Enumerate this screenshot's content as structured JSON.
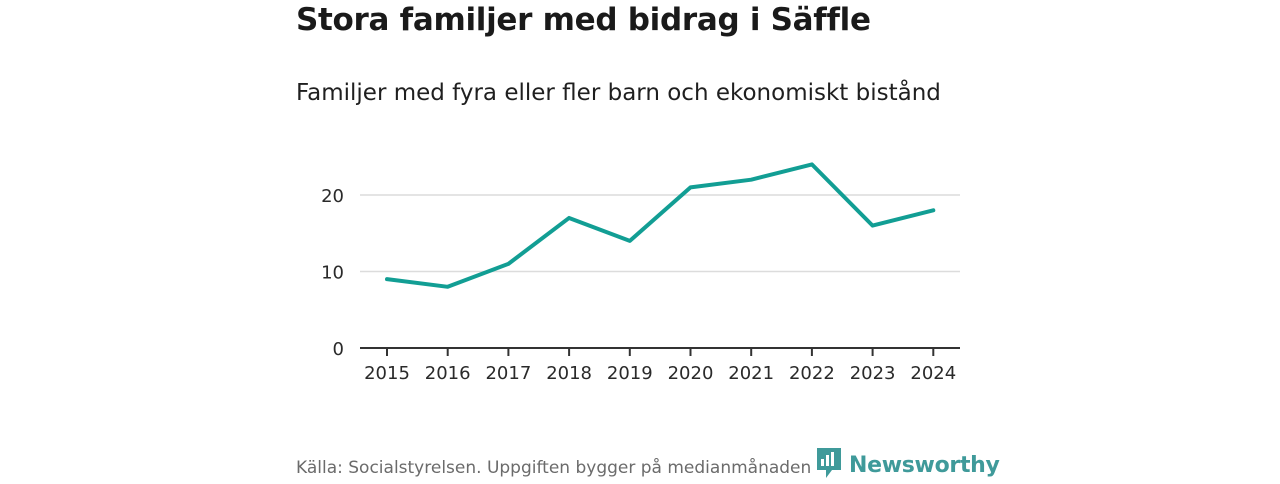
{
  "header": {
    "title": "Stora familjer med bidrag i Säffle",
    "subtitle": "Familjer med fyra eller fler barn och ekonomiskt bistånd"
  },
  "footer": {
    "source": "Källa: Socialstyrelsen. Uppgiften bygger på medianmånaden för varje år",
    "brand": "Newsworthy"
  },
  "colors": {
    "line": "#129e94",
    "grid": "#dcdcdc",
    "axis": "#333333",
    "brand": "#3f9a9a"
  },
  "chart_data": {
    "type": "line",
    "title": "Stora familjer med bidrag i Säffle",
    "subtitle": "Familjer med fyra eller fler barn och ekonomiskt bistånd",
    "xlabel": "",
    "ylabel": "",
    "categories": [
      "2015",
      "2016",
      "2017",
      "2018",
      "2019",
      "2020",
      "2021",
      "2022",
      "2023",
      "2024"
    ],
    "series": [
      {
        "name": "Familjer",
        "values": [
          9,
          8,
          11,
          17,
          14,
          21,
          22,
          24,
          16,
          18
        ]
      }
    ],
    "ylim": [
      0,
      25
    ],
    "yticks": [
      0,
      10,
      20
    ],
    "grid": true,
    "legend": "none"
  }
}
